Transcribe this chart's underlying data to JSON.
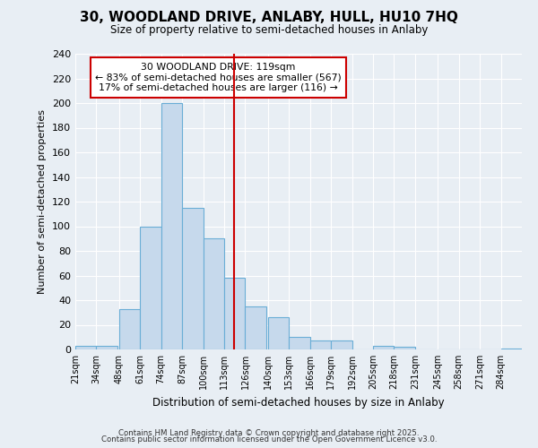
{
  "title": "30, WOODLAND DRIVE, ANLABY, HULL, HU10 7HQ",
  "subtitle": "Size of property relative to semi-detached houses in Anlaby",
  "xlabel": "Distribution of semi-detached houses by size in Anlaby",
  "ylabel": "Number of semi-detached properties",
  "bin_labels": [
    "21sqm",
    "34sqm",
    "48sqm",
    "61sqm",
    "74sqm",
    "87sqm",
    "100sqm",
    "113sqm",
    "126sqm",
    "140sqm",
    "153sqm",
    "166sqm",
    "179sqm",
    "192sqm",
    "205sqm",
    "218sqm",
    "231sqm",
    "245sqm",
    "258sqm",
    "271sqm",
    "284sqm"
  ],
  "bin_edges": [
    21,
    34,
    48,
    61,
    74,
    87,
    100,
    113,
    126,
    140,
    153,
    166,
    179,
    192,
    205,
    218,
    231,
    245,
    258,
    271,
    284
  ],
  "bar_heights": [
    3,
    3,
    33,
    100,
    200,
    115,
    90,
    58,
    35,
    26,
    10,
    7,
    7,
    0,
    3,
    2,
    0,
    0,
    0,
    0,
    1
  ],
  "bar_color": "#c6d9ec",
  "bar_edge_color": "#6aaed6",
  "vline_x": 119,
  "vline_color": "#cc0000",
  "annotation_title": "30 WOODLAND DRIVE: 119sqm",
  "annotation_line1": "← 83% of semi-detached houses are smaller (567)",
  "annotation_line2": "17% of semi-detached houses are larger (116) →",
  "annotation_box_color": "#cc0000",
  "ylim": [
    0,
    240
  ],
  "yticks": [
    0,
    20,
    40,
    60,
    80,
    100,
    120,
    140,
    160,
    180,
    200,
    220,
    240
  ],
  "background_color": "#e8eef4",
  "grid_color": "#ffffff",
  "footer1": "Contains HM Land Registry data © Crown copyright and database right 2025.",
  "footer2": "Contains public sector information licensed under the Open Government Licence v3.0."
}
